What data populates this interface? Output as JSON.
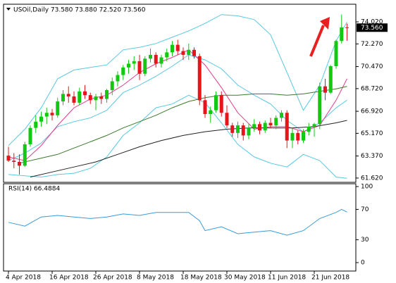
{
  "chart_data": [
    {
      "type": "candlestick",
      "title": "USOil,Daily 73.580 73.880 72.520 73.560",
      "categories": [
        "4 Apr 2018",
        null,
        null,
        null,
        null,
        null,
        null,
        null,
        "16 Apr 2018",
        null,
        null,
        null,
        null,
        null,
        null,
        null,
        "26 Apr 2018",
        null,
        null,
        null,
        null,
        null,
        null,
        null,
        "8 May 2018",
        null,
        null,
        null,
        null,
        null,
        null,
        null,
        "18 May 2018",
        null,
        null,
        null,
        null,
        null,
        null,
        null,
        "30 May 2018",
        null,
        null,
        null,
        null,
        null,
        null,
        null,
        "11 Jun 2018",
        null,
        null,
        null,
        null,
        null,
        null,
        null,
        "21 Jun 2018",
        null,
        null,
        null,
        null,
        null,
        null
      ],
      "open": [
        63.4,
        63.0,
        62.9,
        62.6,
        64.3,
        65.6,
        66.1,
        66.5,
        66.8,
        66.6,
        67.7,
        68.3,
        68.1,
        67.6,
        68.5,
        68.2,
        67.8,
        68.1,
        67.9,
        68.6,
        69.3,
        69.8,
        70.4,
        70.7,
        70.9,
        69.9,
        71.1,
        71.4,
        70.7,
        71.2,
        71.6,
        72.2,
        71.7,
        71.4,
        71.8,
        71.3,
        67.8,
        66.7,
        67.0,
        68.2,
        66.8,
        65.8,
        65.2,
        65.8,
        65.0,
        65.6,
        65.9,
        65.4,
        66.0,
        65.8,
        66.4,
        66.8,
        64.6,
        65.2,
        64.6,
        65.3,
        65.7,
        65.9,
        68.9,
        68.4,
        70.5,
        72.5,
        73.58
      ],
      "high": [
        64.1,
        63.6,
        63.5,
        64.5,
        65.8,
        66.6,
        66.9,
        67.2,
        67.1,
        68.0,
        68.6,
        68.9,
        68.5,
        68.8,
        69.0,
        68.4,
        68.3,
        68.4,
        68.7,
        69.6,
        70.1,
        70.6,
        71.0,
        71.3,
        71.4,
        71.3,
        71.9,
        71.6,
        71.4,
        71.9,
        72.5,
        72.6,
        72.0,
        72.3,
        72.0,
        71.5,
        68.2,
        67.3,
        68.5,
        68.5,
        67.4,
        66.0,
        66.1,
        66.0,
        65.9,
        66.3,
        66.1,
        66.2,
        66.4,
        66.6,
        67.0,
        67.0,
        65.6,
        65.4,
        65.5,
        66.0,
        66.0,
        69.2,
        69.5,
        70.6,
        72.6,
        74.6,
        73.88
      ],
      "low": [
        62.9,
        62.4,
        61.9,
        62.5,
        64.1,
        65.2,
        65.7,
        65.9,
        66.2,
        66.4,
        67.4,
        67.6,
        67.4,
        67.4,
        67.9,
        67.5,
        67.0,
        67.5,
        67.6,
        68.2,
        68.9,
        69.4,
        69.9,
        70.2,
        69.4,
        69.7,
        70.8,
        70.4,
        70.4,
        70.9,
        71.3,
        71.4,
        71.0,
        71.0,
        71.1,
        67.4,
        66.4,
        66.0,
        66.8,
        66.5,
        65.6,
        64.9,
        64.8,
        64.6,
        64.7,
        65.3,
        65.1,
        65.2,
        65.6,
        65.5,
        66.1,
        64.0,
        64.0,
        64.3,
        64.4,
        65.0,
        64.9,
        65.5,
        67.8,
        68.3,
        70.3,
        72.3,
        72.52
      ],
      "close": [
        63.0,
        62.9,
        62.6,
        64.3,
        65.6,
        66.1,
        66.5,
        66.8,
        66.6,
        67.7,
        68.3,
        68.1,
        67.6,
        68.5,
        68.2,
        67.8,
        68.1,
        67.9,
        68.6,
        69.3,
        69.8,
        70.4,
        70.7,
        70.9,
        69.9,
        71.1,
        71.4,
        70.7,
        71.2,
        71.6,
        72.2,
        71.7,
        71.4,
        71.8,
        71.3,
        67.8,
        66.7,
        67.0,
        68.2,
        66.8,
        65.8,
        65.2,
        65.8,
        65.0,
        65.6,
        65.9,
        65.4,
        66.0,
        65.8,
        66.4,
        66.8,
        64.6,
        65.2,
        64.6,
        65.3,
        65.7,
        65.9,
        68.9,
        68.4,
        70.5,
        72.5,
        73.58,
        73.56
      ],
      "up_color": "#12c812",
      "down_color": "#e8141c",
      "ylim": [
        61.28,
        75.42
      ],
      "yticks": [
        {
          "value": 74.02,
          "label": "74.020"
        },
        {
          "value": 72.27,
          "label": "72.270"
        },
        {
          "value": 70.47,
          "label": "70.470"
        },
        {
          "value": 68.72,
          "label": "68.720"
        },
        {
          "value": 66.92,
          "label": "66.920"
        },
        {
          "value": 65.17,
          "label": "65.170"
        },
        {
          "value": 63.37,
          "label": "63.370"
        },
        {
          "value": 61.62,
          "label": "61.620"
        }
      ],
      "last_price": {
        "value": 73.56,
        "label": "73.560"
      },
      "lines": [
        {
          "color": "#5ac8e0",
          "x": [
            0,
            3,
            6,
            9,
            12,
            15,
            18,
            21,
            24,
            27,
            30,
            33,
            36,
            39,
            42,
            45,
            48,
            51,
            54,
            57,
            60,
            62
          ],
          "values": [
            64.2,
            65.5,
            67.2,
            69.5,
            70.2,
            70.4,
            70.6,
            71.8,
            72.0,
            72.3,
            72.8,
            73.3,
            73.9,
            74.6,
            74.5,
            74.2,
            73.0,
            70.0,
            67.0,
            69.0,
            72.5,
            74.0
          ]
        },
        {
          "color": "#5ac8e0",
          "x": [
            0,
            3,
            6,
            9,
            12,
            15,
            18,
            21,
            24,
            27,
            30,
            33,
            36,
            39,
            42,
            45,
            48,
            51,
            54,
            57,
            60,
            62
          ],
          "values": [
            63.0,
            63.6,
            64.4,
            65.7,
            66.1,
            66.4,
            67.0,
            68.4,
            69.0,
            69.7,
            70.5,
            71.4,
            71.0,
            70.3,
            69.0,
            68.2,
            67.5,
            66.2,
            65.3,
            66.0,
            67.2,
            67.8
          ]
        },
        {
          "color": "#5ac8e0",
          "x": [
            0,
            3,
            6,
            9,
            12,
            15,
            18,
            21,
            24,
            27,
            30,
            33,
            36,
            39,
            42,
            45,
            48,
            51,
            54,
            57,
            60,
            62
          ],
          "values": [
            61.9,
            61.8,
            61.7,
            61.9,
            62.0,
            62.4,
            63.3,
            65.0,
            66.0,
            67.2,
            67.5,
            68.2,
            67.6,
            66.0,
            64.3,
            63.3,
            62.8,
            62.5,
            63.5,
            63.0,
            61.7,
            61.6
          ]
        },
        {
          "color": "#e8398a",
          "x": [
            0,
            3,
            6,
            9,
            12,
            15,
            18,
            21,
            24,
            27,
            30,
            33,
            36,
            39,
            42,
            45,
            48,
            51,
            54,
            57,
            60,
            62
          ],
          "values": [
            63.3,
            63.0,
            64.2,
            65.8,
            67.2,
            67.9,
            68.2,
            69.0,
            70.0,
            70.7,
            71.2,
            71.8,
            70.6,
            68.8,
            66.8,
            65.5,
            65.7,
            65.7,
            65.3,
            65.8,
            67.8,
            69.5
          ]
        },
        {
          "color": "#3a7a2a",
          "x": [
            2,
            6,
            9,
            12,
            15,
            18,
            21,
            24,
            27,
            30,
            33,
            36,
            39,
            42,
            45,
            48,
            51,
            54,
            57,
            60,
            62
          ],
          "values": [
            62.8,
            63.2,
            63.5,
            64.0,
            64.5,
            65.0,
            65.6,
            66.1,
            66.6,
            67.2,
            67.7,
            68.0,
            68.2,
            68.2,
            68.3,
            68.3,
            68.2,
            68.3,
            68.5,
            68.7,
            68.9
          ]
        },
        {
          "color": "#222222",
          "x": [
            4,
            8,
            12,
            16,
            20,
            24,
            28,
            32,
            36,
            40,
            44,
            48,
            52,
            56,
            60,
            62
          ],
          "values": [
            61.7,
            62.1,
            62.5,
            62.9,
            63.5,
            64.1,
            64.6,
            65.0,
            65.3,
            65.5,
            65.6,
            65.6,
            65.6,
            65.7,
            66.0,
            66.2
          ]
        }
      ]
    },
    {
      "type": "line",
      "title": "RSI(14) 66.4884",
      "ylim": [
        -11.1,
        103.7
      ],
      "yticks": [
        100,
        70,
        30,
        0
      ],
      "series": [
        {
          "color": "#3a9ad9",
          "x": [
            0,
            3,
            6,
            9,
            12,
            15,
            18,
            21,
            24,
            27,
            30,
            33,
            35,
            36,
            39,
            42,
            45,
            48,
            51,
            54,
            57,
            60,
            61,
            62
          ],
          "values": [
            53,
            48,
            60,
            62,
            60,
            58,
            60,
            64,
            62,
            66,
            66,
            66,
            55,
            42,
            47,
            38,
            40,
            42,
            36,
            42,
            58,
            66,
            70,
            66.4884
          ]
        }
      ]
    }
  ]
}
